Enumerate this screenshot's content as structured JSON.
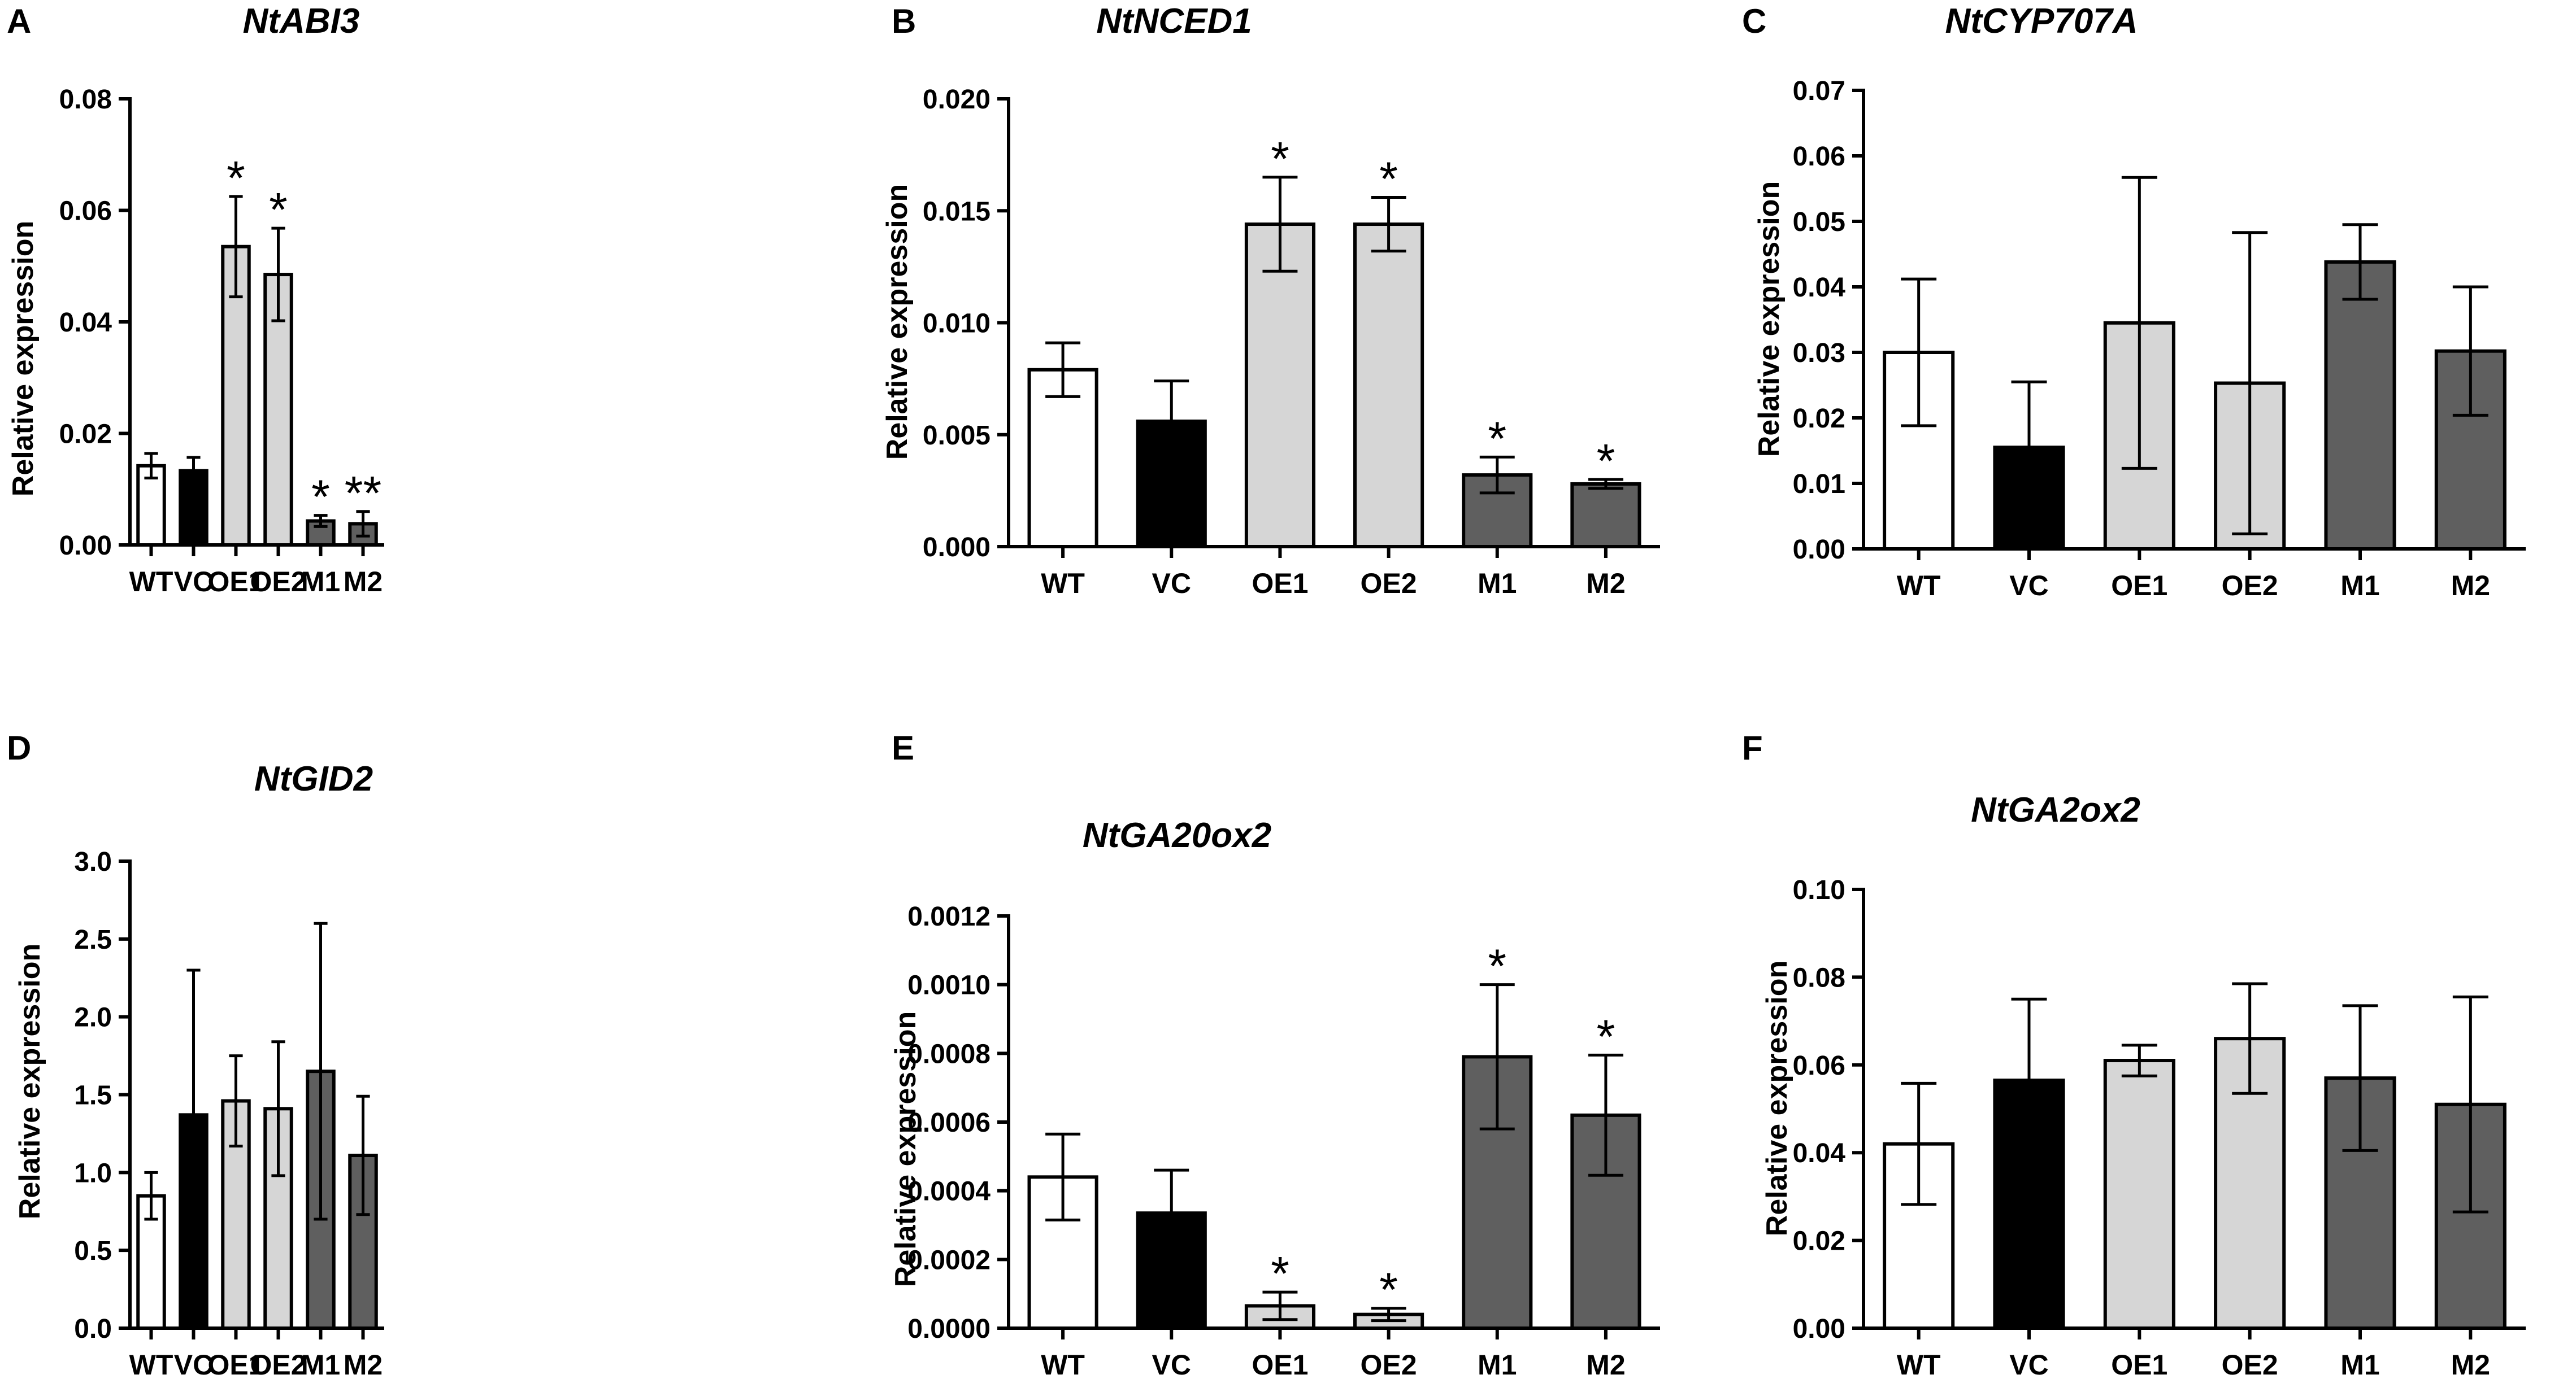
{
  "colors": {
    "WT": "#ffffff",
    "VC": "#000000",
    "OE": "#d6d6d6",
    "M": "#5f5f5f",
    "axis": "#000000"
  },
  "chart_data": [
    {
      "panel": "A",
      "type": "bar",
      "title": "NtABI3",
      "ylabel": "Relative expression",
      "categories": [
        "WT",
        "VC",
        "OE1",
        "OE2",
        "M1",
        "M2"
      ],
      "values": [
        0.0142,
        0.0133,
        0.0535,
        0.0485,
        0.0043,
        0.0038
      ],
      "errors": [
        0.0022,
        0.0024,
        0.009,
        0.0083,
        0.001,
        0.0022
      ],
      "significance": [
        "",
        "",
        "*",
        "*",
        "*",
        "**"
      ],
      "ylim": [
        0,
        0.08
      ],
      "ytick_labels": [
        "0.00",
        "0.02",
        "0.04",
        "0.06",
        "0.08"
      ]
    },
    {
      "panel": "B",
      "type": "bar",
      "title": "NtNCED1",
      "ylabel": "Relative expression",
      "categories": [
        "WT",
        "VC",
        "OE1",
        "OE2",
        "M1",
        "M2"
      ],
      "values": [
        0.0079,
        0.0056,
        0.0144,
        0.0144,
        0.0032,
        0.0028
      ],
      "errors": [
        0.0012,
        0.0018,
        0.0021,
        0.0012,
        0.0008,
        0.0002
      ],
      "significance": [
        "",
        "",
        "*",
        "*",
        "*",
        "*"
      ],
      "ylim": [
        0,
        0.02
      ],
      "ytick_labels": [
        "0.000",
        "0.005",
        "0.010",
        "0.015",
        "0.020"
      ]
    },
    {
      "panel": "C",
      "type": "bar",
      "title": "NtCYP707A",
      "ylabel": "Relative expression",
      "categories": [
        "WT",
        "VC",
        "OE1",
        "OE2",
        "M1",
        "M2"
      ],
      "values": [
        0.03,
        0.0155,
        0.0345,
        0.0253,
        0.0438,
        0.0302
      ],
      "errors": [
        0.0112,
        0.01,
        0.0222,
        0.023,
        0.0057,
        0.0098
      ],
      "significance": [
        "",
        "",
        "",
        "",
        "",
        ""
      ],
      "ylim": [
        0,
        0.07
      ],
      "ytick_labels": [
        "0.00",
        "0.01",
        "0.02",
        "0.03",
        "0.04",
        "0.05",
        "0.06",
        "0.07"
      ]
    },
    {
      "panel": "D",
      "type": "bar",
      "title": "NtGID2",
      "ylabel": "Relative expression",
      "categories": [
        "WT",
        "VC",
        "OE1",
        "OE2",
        "M1",
        "M2"
      ],
      "values": [
        0.85,
        1.37,
        1.46,
        1.41,
        1.65,
        1.11
      ],
      "errors": [
        0.15,
        0.93,
        0.29,
        0.43,
        0.95,
        0.38
      ],
      "significance": [
        "",
        "",
        "",
        "",
        "",
        ""
      ],
      "ylim": [
        0,
        3.0
      ],
      "ytick_labels": [
        "0.0",
        "0.5",
        "1.0",
        "1.5",
        "2.0",
        "2.5",
        "3.0"
      ]
    },
    {
      "panel": "E",
      "type": "bar",
      "title": "NtGA20ox2",
      "ylabel": "Relative expression",
      "categories": [
        "WT",
        "VC",
        "OE1",
        "OE2",
        "M1",
        "M2"
      ],
      "values": [
        0.00044,
        0.000335,
        6.5e-05,
        4e-05,
        0.00079,
        0.00062
      ],
      "errors": [
        0.000125,
        0.000125,
        4e-05,
        1.8e-05,
        0.00021,
        0.000175
      ],
      "significance": [
        "",
        "",
        "*",
        "*",
        "*",
        "*"
      ],
      "ylim": [
        0,
        0.0012
      ],
      "ytick_labels": [
        "0.0000",
        "0.0002",
        "0.0004",
        "0.0006",
        "0.0008",
        "0.0010",
        "0.0012"
      ]
    },
    {
      "panel": "F",
      "type": "bar",
      "title": "NtGA2ox2",
      "ylabel": "Relative expression",
      "categories": [
        "WT",
        "VC",
        "OE1",
        "OE2",
        "M1",
        "M2"
      ],
      "values": [
        0.042,
        0.0565,
        0.061,
        0.066,
        0.057,
        0.051
      ],
      "errors": [
        0.0138,
        0.0185,
        0.0035,
        0.0125,
        0.0165,
        0.0245
      ],
      "significance": [
        "",
        "",
        "",
        "",
        "",
        ""
      ],
      "ylim": [
        0,
        0.1
      ],
      "ytick_labels": [
        "0.00",
        "0.02",
        "0.04",
        "0.06",
        "0.08",
        "0.10"
      ]
    }
  ]
}
